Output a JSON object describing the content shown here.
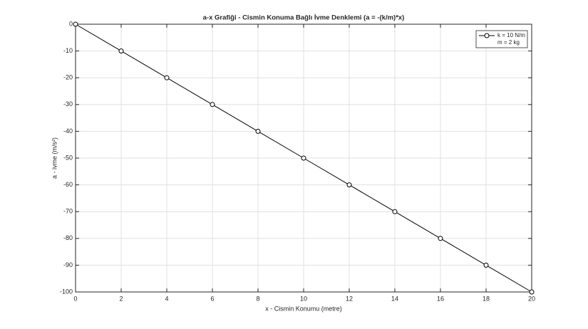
{
  "chart_data": {
    "type": "line",
    "title": "a-x Grafiği - Cismin Konuma Bağlı İvme Denklemi (a = -(k/m)*x)",
    "x_label": "x - Cismin Konumu (metre)",
    "y_label": "a - ivme (m/s²)",
    "x": [
      0,
      2,
      4,
      6,
      8,
      10,
      12,
      14,
      16,
      18,
      20
    ],
    "series": [
      {
        "name": "k = 10 N/m",
        "color": "#000000",
        "values": [
          0,
          -10,
          -20,
          -30,
          -40,
          -50,
          -60,
          -70,
          -80,
          -90,
          -100
        ]
      }
    ],
    "legend_note": "m = 2 kg",
    "xlim": [
      0,
      20
    ],
    "xticks": [
      0,
      2,
      4,
      6,
      8,
      10,
      12,
      14,
      16,
      18,
      20
    ],
    "ylim": [
      -100,
      0
    ],
    "yticks": [
      -100,
      -90,
      -80,
      -70,
      -60,
      -50,
      -40,
      -30,
      -20,
      -10,
      0
    ],
    "grid": true,
    "legend_position": "top-right",
    "marker": "circle"
  }
}
